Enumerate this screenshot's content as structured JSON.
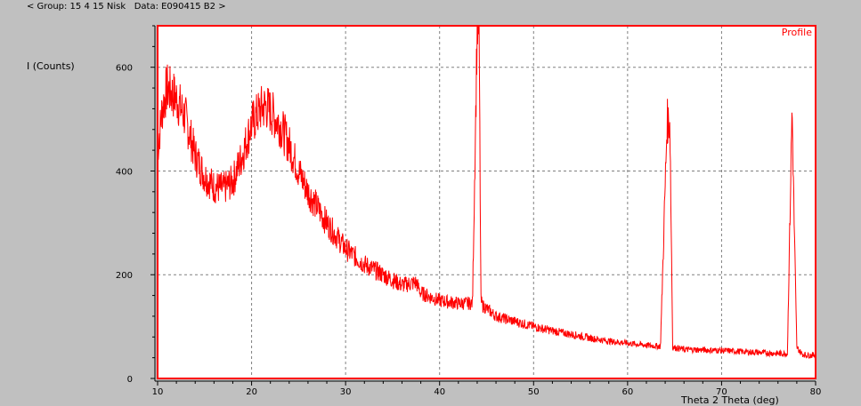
{
  "header": {
    "text": "< Group: 15 4 15 Nisk   Data: E090415 B2 >"
  },
  "chart_data": {
    "type": "line",
    "title": "",
    "legend": "Profile",
    "xlabel": "Theta 2 Theta (deg)",
    "ylabel": "I (Counts)",
    "xlim": [
      10,
      80
    ],
    "ylim": [
      0,
      680
    ],
    "xticks": [
      "10",
      "20",
      "30",
      "40",
      "50",
      "60",
      "70",
      "80"
    ],
    "yticks": [
      {
        "value": 0,
        "label": "0"
      },
      {
        "value": 200,
        "label": "200"
      },
      {
        "value": 400,
        "label": "400"
      },
      {
        "value": 600,
        "label": "600"
      }
    ],
    "grid": true,
    "colors": {
      "line": "#ff0000",
      "frame": "#ff0000",
      "grid": "#808080",
      "plot_bg": "#ffffff"
    },
    "series": [
      {
        "x": [
          10,
          10.5,
          11,
          12,
          13,
          14,
          15,
          16,
          17,
          18,
          19,
          20,
          21,
          21.5,
          22,
          23,
          24,
          25,
          26,
          27,
          28,
          29,
          30,
          32,
          34,
          36,
          37.5,
          38,
          40,
          42,
          43.5,
          44,
          44.2,
          44.4,
          44.6,
          45,
          46,
          48,
          50,
          52,
          54,
          56,
          58,
          60,
          62,
          63.5,
          64.2,
          64.5,
          64.8,
          65.5,
          66,
          68,
          70,
          72,
          74,
          76,
          77,
          77.5,
          77.7,
          78,
          78.5,
          79,
          80
        ],
        "y": [
          440,
          520,
          560,
          540,
          500,
          430,
          390,
          370,
          365,
          380,
          430,
          490,
          520,
          525,
          515,
          490,
          450,
          400,
          360,
          330,
          300,
          275,
          250,
          220,
          200,
          180,
          185,
          165,
          150,
          145,
          145,
          680,
          680,
          150,
          140,
          135,
          120,
          110,
          100,
          92,
          85,
          78,
          72,
          68,
          64,
          62,
          495,
          495,
          60,
          58,
          56,
          55,
          54,
          52,
          50,
          48,
          48,
          525,
          320,
          60,
          48,
          45,
          45
        ]
      }
    ]
  }
}
